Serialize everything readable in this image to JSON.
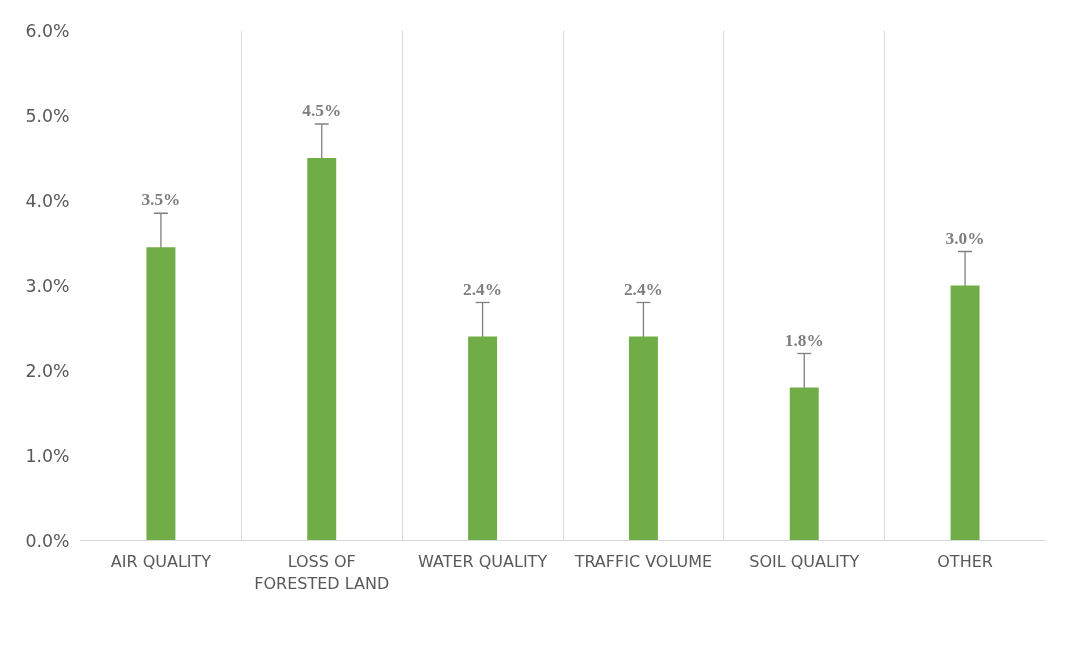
{
  "chart_data": {
    "type": "bar",
    "categories": [
      "AIR QUALITY",
      "LOSS OF FORESTED LAND",
      "WATER QUALITY",
      "TRAFFIC VOLUME",
      "SOIL QUALITY",
      "OTHER"
    ],
    "values": [
      3.45,
      4.5,
      2.4,
      2.4,
      1.8,
      3.0
    ],
    "errors": [
      0.4,
      0.4,
      0.4,
      0.4,
      0.4,
      0.4
    ],
    "value_labels": [
      "3.5%",
      "4.5%",
      "2.4%",
      "2.4%",
      "1.8%",
      "3.0%"
    ],
    "color": "#70ad47",
    "ylim": [
      0,
      6
    ],
    "yticks": [
      {
        "value": 0,
        "label": "0.0%"
      },
      {
        "value": 1,
        "label": "1.0%"
      },
      {
        "value": 2,
        "label": "2.0%"
      },
      {
        "value": 3,
        "label": "3.0%"
      },
      {
        "value": 4,
        "label": "4.0%"
      },
      {
        "value": 5,
        "label": "5.0%"
      },
      {
        "value": 6,
        "label": "6.0%"
      }
    ],
    "grid": "x"
  }
}
